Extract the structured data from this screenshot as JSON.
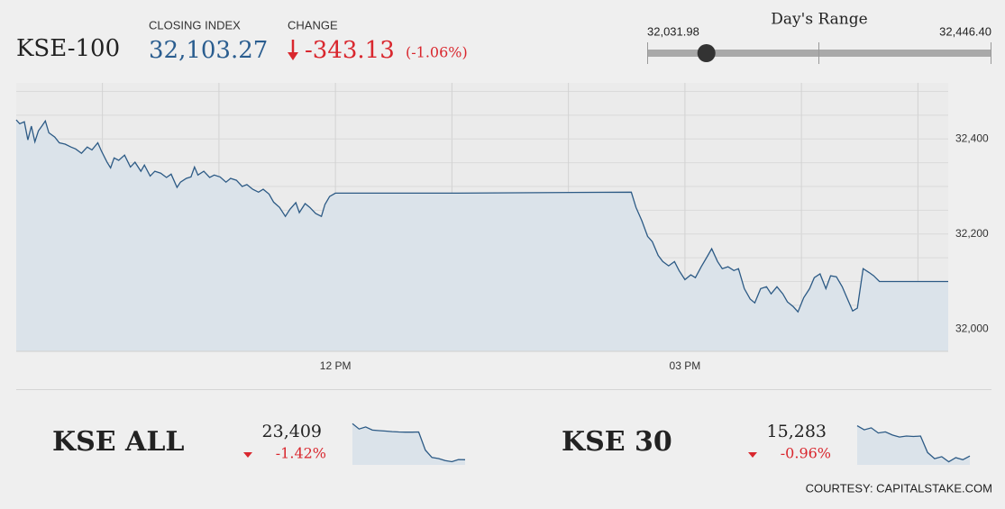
{
  "header": {
    "title": "KSE-100",
    "closing_caption": "CLOSING INDEX",
    "closing": {
      "value": 32103.27,
      "label": "32,103.27"
    },
    "change_caption": "CHANGE",
    "change": "-343.13",
    "change_pct": "(-1.06%)"
  },
  "range": {
    "title": "Day's Range",
    "low": {
      "value": 32031.98,
      "label": "32,031.98"
    },
    "high": {
      "value": 32446.4,
      "label": "32,446.40"
    }
  },
  "chart_data": [
    {
      "type": "line",
      "color": "#2c5a85",
      "fill": "#dbe3ea",
      "x": [
        9.26,
        9.29,
        9.33,
        9.36,
        9.39,
        9.42,
        9.45,
        9.48,
        9.51,
        9.54,
        9.59,
        9.63,
        9.68,
        9.73,
        9.77,
        9.82,
        9.87,
        9.91,
        9.96,
        9.99,
        10.04,
        10.07,
        10.1,
        10.14,
        10.19,
        10.24,
        10.28,
        10.33,
        10.36,
        10.41,
        10.45,
        10.5,
        10.55,
        10.59,
        10.64,
        10.67,
        10.72,
        10.76,
        10.79,
        10.82,
        10.87,
        10.92,
        10.96,
        11.01,
        11.06,
        11.1,
        11.15,
        11.2,
        11.24,
        11.29,
        11.34,
        11.38,
        11.43,
        11.47,
        11.52,
        11.57,
        11.61,
        11.66,
        11.69,
        11.74,
        11.78,
        11.83,
        11.88,
        11.91,
        11.95,
        12.0,
        12.06,
        12.99,
        14.54,
        14.58,
        14.63,
        14.68,
        14.72,
        14.77,
        14.81,
        14.86,
        14.91,
        14.95,
        15.0,
        15.05,
        15.09,
        15.14,
        15.19,
        15.23,
        15.28,
        15.32,
        15.37,
        15.42,
        15.46,
        15.51,
        15.56,
        15.6,
        15.65,
        15.7,
        15.74,
        15.79,
        15.84,
        15.88,
        15.93,
        15.97,
        16.02,
        16.07,
        16.11,
        16.16,
        16.21,
        16.25,
        16.3,
        16.35,
        16.39,
        16.44,
        16.48,
        16.53,
        16.58,
        16.62,
        16.67,
        17.26
      ],
      "values": [
        32440,
        32432,
        32436,
        32398,
        32427,
        32394,
        32417,
        32427,
        32438,
        32413,
        32404,
        32392,
        32389,
        32383,
        32379,
        32370,
        32383,
        32377,
        32392,
        32375,
        32351,
        32339,
        32360,
        32355,
        32366,
        32341,
        32351,
        32332,
        32345,
        32322,
        32332,
        32328,
        32319,
        32326,
        32298,
        32309,
        32317,
        32320,
        32341,
        32324,
        32332,
        32319,
        32324,
        32320,
        32309,
        32317,
        32313,
        32300,
        32304,
        32294,
        32288,
        32294,
        32284,
        32267,
        32256,
        32237,
        32252,
        32266,
        32245,
        32264,
        32256,
        32243,
        32237,
        32262,
        32279,
        32286,
        32286,
        32286,
        32288,
        32256,
        32228,
        32195,
        32184,
        32155,
        32142,
        32133,
        32142,
        32123,
        32104,
        32114,
        32108,
        32131,
        32152,
        32169,
        32142,
        32127,
        32131,
        32123,
        32127,
        32085,
        32063,
        32055,
        32085,
        32089,
        32074,
        32089,
        32074,
        32057,
        32047,
        32036,
        32066,
        32085,
        32108,
        32116,
        32085,
        32112,
        32110,
        32089,
        32066,
        32038,
        32044,
        32127,
        32119,
        32112,
        32100,
        32100
      ],
      "xlim": [
        9.26,
        17.26
      ],
      "xticks": [
        {
          "value": 12,
          "label": "12 PM"
        },
        {
          "value": 15,
          "label": "03 PM"
        }
      ],
      "minor_xticks": [
        10,
        11,
        13,
        14,
        16,
        17
      ],
      "ylim": [
        31953,
        32518
      ],
      "yticks": [
        {
          "value": 32000,
          "label": "32,000"
        },
        {
          "value": 32200,
          "label": "32,200"
        },
        {
          "value": 32400,
          "label": "32,400"
        }
      ],
      "minor_yticks": [
        32050,
        32100,
        32150,
        32250,
        32300,
        32350,
        32450,
        32500
      ],
      "grid": true
    },
    {
      "type": "sparkline",
      "title": "KSE ALL",
      "last": "23,409",
      "change": "-1.42%",
      "color": "#2c5a85",
      "fill": "#dbe3ea",
      "values": [
        23750,
        23700,
        23720,
        23690,
        23685,
        23680,
        23675,
        23672,
        23670,
        23670,
        23672,
        23500,
        23430,
        23420,
        23400,
        23390,
        23410,
        23409
      ],
      "ylim": [
        23360,
        23770
      ]
    },
    {
      "type": "sparkline",
      "title": "KSE 30",
      "last": "15,283",
      "change": "-0.96%",
      "color": "#2c5a85",
      "fill": "#dbe3ea",
      "values": [
        15430,
        15410,
        15420,
        15395,
        15400,
        15385,
        15375,
        15380,
        15378,
        15380,
        15300,
        15270,
        15280,
        15255,
        15275,
        15265,
        15283
      ],
      "ylim": [
        15240,
        15450
      ]
    }
  ],
  "courtesy": "COURTESY: CAPITALSTAKE.COM"
}
